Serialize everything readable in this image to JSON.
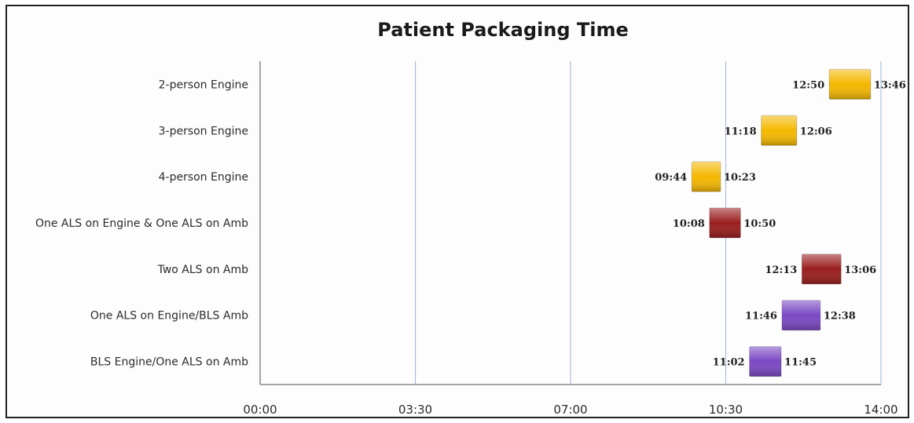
{
  "chart_data": {
    "type": "bar",
    "orientation": "horizontal",
    "title": "Patient Packaging Time",
    "categories": [
      "2-person Engine",
      "3-person Engine",
      "4-person Engine",
      "One ALS on Engine & One ALS on Amb",
      "Two ALS on Amb",
      "One ALS on Engine/BLS Amb",
      "BLS Engine/One ALS on Amb"
    ],
    "start_labels": [
      "12:50",
      "11:18",
      "09:44",
      "10:08",
      "12:13",
      "11:46",
      "11:02"
    ],
    "end_labels": [
      "13:46",
      "12:06",
      "10:23",
      "10:50",
      "13:06",
      "12:38",
      "11:45"
    ],
    "start_minutes": [
      770,
      678,
      584,
      608,
      733,
      706,
      662
    ],
    "end_minutes": [
      826,
      726,
      623,
      650,
      786,
      758,
      705
    ],
    "colors": [
      "#f5b800",
      "#f5b800",
      "#f5b800",
      "#9a1e1e",
      "#9a1e1e",
      "#7b48c4",
      "#7b48c4"
    ],
    "xlim": [
      0,
      840
    ],
    "x_ticks": [
      0,
      210,
      420,
      630,
      840
    ],
    "x_tick_labels": [
      "00:00",
      "03:30",
      "07:00",
      "10:30",
      "14:00"
    ],
    "grid": "vertical",
    "legend": "none"
  }
}
